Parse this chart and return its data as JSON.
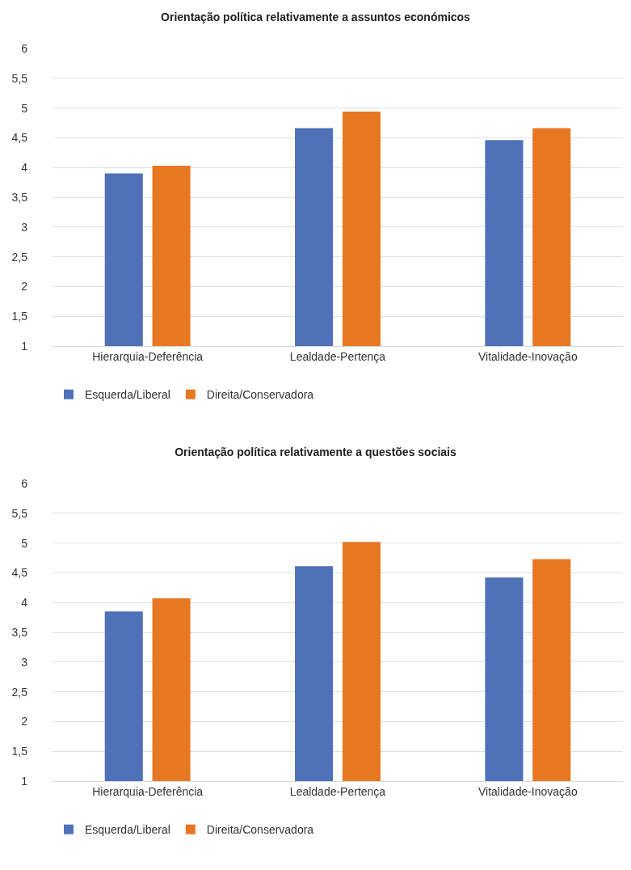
{
  "chart_data": [
    {
      "type": "bar",
      "title": "Orientação política relativamente a assuntos económicos",
      "categories": [
        "Hierarquia-Deferência",
        "Lealdade-Pertença",
        "Vitalidade-Inovação"
      ],
      "series": [
        {
          "name": "Esquerda/Liberal",
          "color": "#4e71b8",
          "values": [
            3.9,
            4.66,
            4.46
          ]
        },
        {
          "name": "Direita/Conservadora",
          "color": "#e87722",
          "values": [
            4.03,
            4.94,
            4.66
          ]
        }
      ],
      "ylim": [
        1,
        6
      ],
      "yticks": [
        1,
        {
          "value": 1.5,
          "label": "1,5"
        },
        2,
        {
          "value": 2.5,
          "label": "2,5"
        },
        3,
        {
          "value": 3.5,
          "label": "3,5"
        },
        4,
        {
          "value": 4.5,
          "label": "4,5"
        },
        5,
        {
          "value": 5.5,
          "label": "5,5"
        },
        6
      ],
      "grid": "y",
      "legend": "bottom left"
    },
    {
      "type": "bar",
      "title": "Orientação política relativamente a questões sociais",
      "categories": [
        "Hierarquia-Deferência",
        "Lealdade-Pertença",
        "Vitalidade-Inovação"
      ],
      "series": [
        {
          "name": "Esquerda/Liberal",
          "color": "#4e71b8",
          "values": [
            3.85,
            4.61,
            4.42
          ]
        },
        {
          "name": "Direita/Conservadora",
          "color": "#e87722",
          "values": [
            4.07,
            5.02,
            4.73
          ]
        }
      ],
      "ylim": [
        1,
        6
      ],
      "yticks": [
        1,
        {
          "value": 1.5,
          "label": "1,5"
        },
        2,
        {
          "value": 2.5,
          "label": "2,5"
        },
        3,
        {
          "value": 3.5,
          "label": "3,5"
        },
        4,
        {
          "value": 4.5,
          "label": "4,5"
        },
        5,
        {
          "value": 5.5,
          "label": "5,5"
        },
        6
      ],
      "grid": "y",
      "legend": "bottom left"
    }
  ]
}
